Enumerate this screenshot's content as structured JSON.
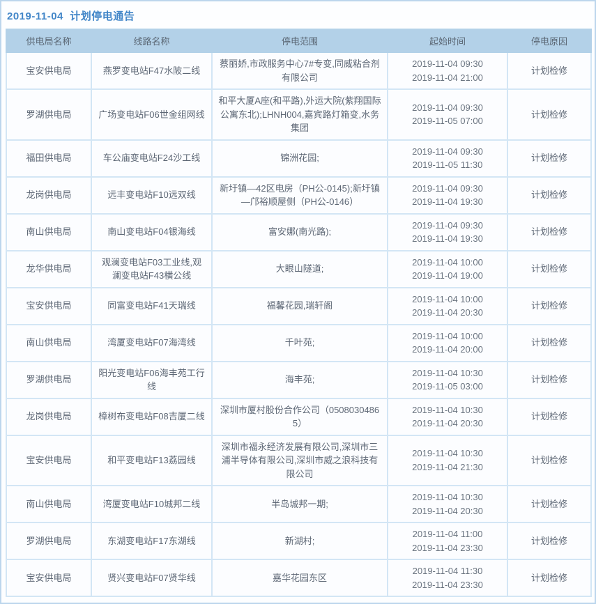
{
  "title": "2019-11-04  计划停电通告",
  "table": {
    "columns": [
      "供电局名称",
      "线路名称",
      "停电范围",
      "起始时间",
      "停电原因"
    ],
    "rows": [
      {
        "bureau": "宝安供电局",
        "line": "燕罗变电站F47水陂二线",
        "scope": "蔡丽娇,市政服务中心7#专变,同威粘合剂有限公司",
        "time_start": "2019-11-04 09:30",
        "time_end": "2019-11-04 21:00",
        "reason": "计划检修"
      },
      {
        "bureau": "罗湖供电局",
        "line": "广场变电站F06世金组网线",
        "scope": "和平大厦A座(和平路),外运大院(紫翔国际公寓东北);LHNH004,嘉宾路灯箱变,水务集团",
        "time_start": "2019-11-04 09:30",
        "time_end": "2019-11-05 07:00",
        "reason": "计划检修"
      },
      {
        "bureau": "福田供电局",
        "line": "车公庙变电站F24沙工线",
        "scope": "锦洲花园;",
        "time_start": "2019-11-04 09:30",
        "time_end": "2019-11-05 11:30",
        "reason": "计划检修"
      },
      {
        "bureau": "龙岗供电局",
        "line": "远丰变电站F10远双线",
        "scope": "新圩镇—42区电房（PH公-0145);新圩镇—邝裕顺屋侧（PH公-0146）",
        "time_start": "2019-11-04 09:30",
        "time_end": "2019-11-04 19:30",
        "reason": "计划检修"
      },
      {
        "bureau": "南山供电局",
        "line": "南山变电站F04银海线",
        "scope": "富安娜(南光路);",
        "time_start": "2019-11-04 09:30",
        "time_end": "2019-11-04 19:30",
        "reason": "计划检修"
      },
      {
        "bureau": "龙华供电局",
        "line": "观澜变电站F03工业线,观澜变电站F43横公线",
        "scope": "大眼山隧道;",
        "time_start": "2019-11-04 10:00",
        "time_end": "2019-11-04 19:00",
        "reason": "计划检修"
      },
      {
        "bureau": "宝安供电局",
        "line": "同富变电站F41天瑞线",
        "scope": "福馨花园,瑞轩阁",
        "time_start": "2019-11-04 10:00",
        "time_end": "2019-11-04 20:30",
        "reason": "计划检修"
      },
      {
        "bureau": "南山供电局",
        "line": "湾厦变电站F07海湾线",
        "scope": "千叶苑;",
        "time_start": "2019-11-04 10:00",
        "time_end": "2019-11-04 20:00",
        "reason": "计划检修"
      },
      {
        "bureau": "罗湖供电局",
        "line": "阳光变电站F06海丰苑工行线",
        "scope": "海丰苑;",
        "time_start": "2019-11-04 10:30",
        "time_end": "2019-11-05 03:00",
        "reason": "计划检修"
      },
      {
        "bureau": "龙岗供电局",
        "line": "樟树布变电站F08吉厦二线",
        "scope": "深圳市厦村股份合作公司（05080304865）",
        "time_start": "2019-11-04 10:30",
        "time_end": "2019-11-04 20:30",
        "reason": "计划检修"
      },
      {
        "bureau": "宝安供电局",
        "line": "和平变电站F13荔园线",
        "scope": "深圳市福永经济发展有限公司,深圳市三浦半导体有限公司,深圳市威之浪科技有限公司",
        "time_start": "2019-11-04 10:30",
        "time_end": "2019-11-04 21:30",
        "reason": "计划检修"
      },
      {
        "bureau": "南山供电局",
        "line": "湾厦变电站F10城邦二线",
        "scope": "半岛城邦一期;",
        "time_start": "2019-11-04 10:30",
        "time_end": "2019-11-04 20:30",
        "reason": "计划检修"
      },
      {
        "bureau": "罗湖供电局",
        "line": "东湖变电站F17东湖线",
        "scope": "新湖村;",
        "time_start": "2019-11-04 11:00",
        "time_end": "2019-11-04 23:30",
        "reason": "计划检修"
      },
      {
        "bureau": "宝安供电局",
        "line": "贤兴变电站F07贤华线",
        "scope": "嘉华花园东区",
        "time_start": "2019-11-04 11:30",
        "time_end": "2019-11-04 23:30",
        "reason": "计划检修"
      }
    ]
  }
}
